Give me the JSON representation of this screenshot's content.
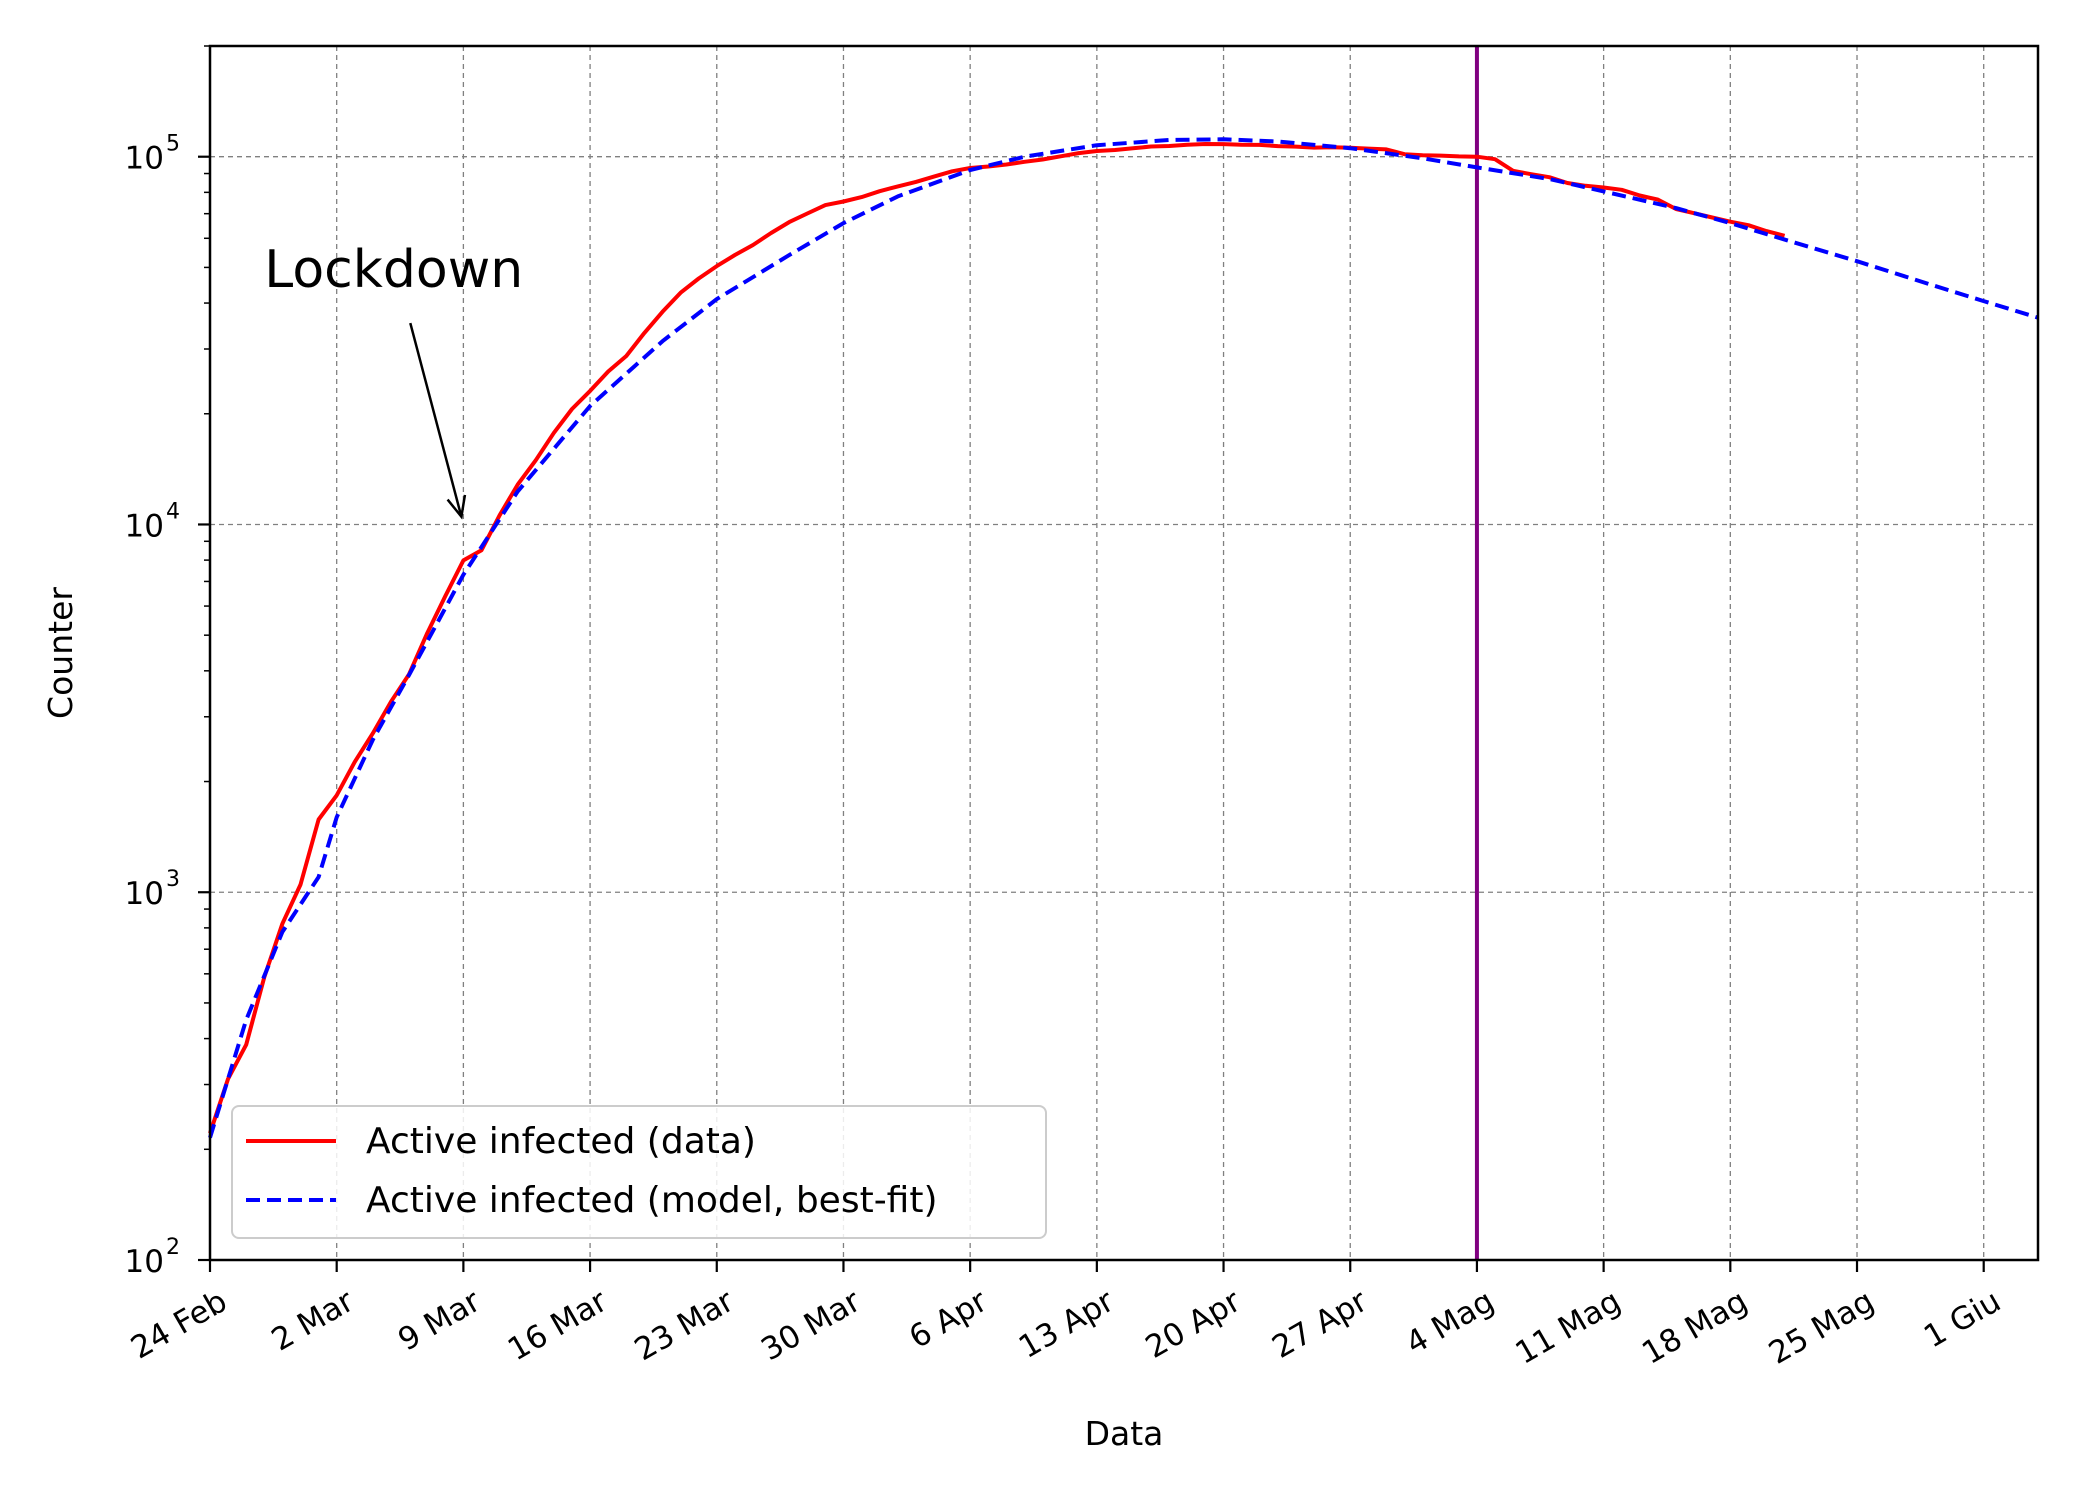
{
  "chart_data": {
    "type": "line",
    "scale_y": "log",
    "xlabel": "Data",
    "ylabel": "Counter",
    "ylim": [
      100,
      200000
    ],
    "xlim": [
      "2020-02-24",
      "2020-06-04"
    ],
    "grid": true,
    "legend_position": "lower-left",
    "x_ticks": [
      {
        "date": "2020-02-24",
        "label": "24 Feb"
      },
      {
        "date": "2020-03-02",
        "label": "2 Mar"
      },
      {
        "date": "2020-03-09",
        "label": "9 Mar"
      },
      {
        "date": "2020-03-16",
        "label": "16 Mar"
      },
      {
        "date": "2020-03-23",
        "label": "23 Mar"
      },
      {
        "date": "2020-03-30",
        "label": "30 Mar"
      },
      {
        "date": "2020-04-06",
        "label": "6 Apr"
      },
      {
        "date": "2020-04-13",
        "label": "13 Apr"
      },
      {
        "date": "2020-04-20",
        "label": "20 Apr"
      },
      {
        "date": "2020-04-27",
        "label": "27 Apr"
      },
      {
        "date": "2020-05-04",
        "label": "4 Mag"
      },
      {
        "date": "2020-05-11",
        "label": "11 Mag"
      },
      {
        "date": "2020-05-18",
        "label": "18 Mag"
      },
      {
        "date": "2020-05-25",
        "label": "25 Mag"
      },
      {
        "date": "2020-06-01",
        "label": "1 Giu"
      }
    ],
    "y_ticks": [
      {
        "value": 100,
        "base": "10",
        "exp": "2"
      },
      {
        "value": 1000,
        "base": "10",
        "exp": "3"
      },
      {
        "value": 10000,
        "base": "10",
        "exp": "4"
      },
      {
        "value": 100000,
        "base": "10",
        "exp": "5"
      }
    ],
    "vline": {
      "date": "2020-05-04",
      "color": "#800080"
    },
    "annotation": {
      "text": "Lockdown",
      "text_at": [
        "2020-02-27",
        40000
      ],
      "arrow_to": [
        "2020-03-09",
        10500
      ]
    },
    "series": [
      {
        "name": "Active infected (data)",
        "color": "#ff0000",
        "dash": "solid",
        "points": [
          [
            "2020-02-24",
            221
          ],
          [
            "2020-02-25",
            311
          ],
          [
            "2020-02-26",
            385
          ],
          [
            "2020-02-27",
            588
          ],
          [
            "2020-02-28",
            821
          ],
          [
            "2020-02-29",
            1049
          ],
          [
            "2020-03-01",
            1577
          ],
          [
            "2020-03-02",
            1835
          ],
          [
            "2020-03-03",
            2263
          ],
          [
            "2020-03-04",
            2706
          ],
          [
            "2020-03-05",
            3296
          ],
          [
            "2020-03-06",
            3916
          ],
          [
            "2020-03-07",
            5061
          ],
          [
            "2020-03-08",
            6387
          ],
          [
            "2020-03-09",
            7985
          ],
          [
            "2020-03-10",
            8514
          ],
          [
            "2020-03-11",
            10590
          ],
          [
            "2020-03-12",
            12839
          ],
          [
            "2020-03-13",
            14955
          ],
          [
            "2020-03-14",
            17750
          ],
          [
            "2020-03-15",
            20603
          ],
          [
            "2020-03-16",
            23073
          ],
          [
            "2020-03-17",
            26062
          ],
          [
            "2020-03-18",
            28710
          ],
          [
            "2020-03-19",
            33190
          ],
          [
            "2020-03-20",
            37860
          ],
          [
            "2020-03-21",
            42681
          ],
          [
            "2020-03-22",
            46638
          ],
          [
            "2020-03-23",
            50418
          ],
          [
            "2020-03-24",
            54030
          ],
          [
            "2020-03-25",
            57521
          ],
          [
            "2020-03-26",
            62013
          ],
          [
            "2020-03-27",
            66414
          ],
          [
            "2020-03-28",
            70065
          ],
          [
            "2020-03-29",
            73880
          ],
          [
            "2020-03-30",
            75528
          ],
          [
            "2020-03-31",
            77635
          ],
          [
            "2020-04-01",
            80572
          ],
          [
            "2020-04-02",
            83049
          ],
          [
            "2020-04-03",
            85388
          ],
          [
            "2020-04-04",
            88274
          ],
          [
            "2020-04-05",
            91246
          ],
          [
            "2020-04-06",
            93187
          ],
          [
            "2020-04-07",
            94067
          ],
          [
            "2020-04-08",
            95262
          ],
          [
            "2020-04-09",
            96877
          ],
          [
            "2020-04-10",
            98273
          ],
          [
            "2020-04-11",
            100269
          ],
          [
            "2020-04-12",
            102253
          ],
          [
            "2020-04-13",
            103616
          ],
          [
            "2020-04-14",
            104291
          ],
          [
            "2020-04-15",
            105418
          ],
          [
            "2020-04-16",
            106607
          ],
          [
            "2020-04-17",
            106962
          ],
          [
            "2020-04-18",
            107771
          ],
          [
            "2020-04-19",
            108257
          ],
          [
            "2020-04-20",
            108237
          ],
          [
            "2020-04-21",
            107709
          ],
          [
            "2020-04-22",
            107699
          ],
          [
            "2020-04-23",
            106848
          ],
          [
            "2020-04-24",
            106527
          ],
          [
            "2020-04-25",
            105847
          ],
          [
            "2020-04-26",
            106103
          ],
          [
            "2020-04-27",
            105813
          ],
          [
            "2020-04-28",
            105205
          ],
          [
            "2020-04-29",
            104657
          ],
          [
            "2020-04-30",
            101551
          ],
          [
            "2020-05-01",
            100943
          ],
          [
            "2020-05-02",
            100704
          ],
          [
            "2020-05-03",
            100179
          ],
          [
            "2020-05-04",
            99980
          ],
          [
            "2020-05-05",
            98467
          ],
          [
            "2020-05-06",
            91528
          ],
          [
            "2020-05-07",
            89624
          ],
          [
            "2020-05-08",
            87961
          ],
          [
            "2020-05-09",
            84842
          ],
          [
            "2020-05-10",
            83324
          ],
          [
            "2020-05-11",
            82488
          ],
          [
            "2020-05-12",
            81266
          ],
          [
            "2020-05-13",
            78457
          ],
          [
            "2020-05-14",
            76440
          ],
          [
            "2020-05-15",
            72070
          ],
          [
            "2020-05-16",
            70187
          ],
          [
            "2020-05-17",
            68351
          ],
          [
            "2020-05-18",
            66553
          ],
          [
            "2020-05-19",
            65129
          ],
          [
            "2020-05-20",
            62752
          ],
          [
            "2020-05-21",
            60960
          ]
        ]
      },
      {
        "name": "Active infected (model, best-fit)",
        "color": "#0000ff",
        "dash": "dashed",
        "points": [
          [
            "2020-02-24",
            215
          ],
          [
            "2020-02-26",
            450
          ],
          [
            "2020-02-28",
            780
          ],
          [
            "2020-03-01",
            1100
          ],
          [
            "2020-03-02",
            1600
          ],
          [
            "2020-03-04",
            2600
          ],
          [
            "2020-03-06",
            3900
          ],
          [
            "2020-03-09",
            7300
          ],
          [
            "2020-03-12",
            12300
          ],
          [
            "2020-03-16",
            21000
          ],
          [
            "2020-03-20",
            31500
          ],
          [
            "2020-03-23",
            41000
          ],
          [
            "2020-03-27",
            54000
          ],
          [
            "2020-03-30",
            66000
          ],
          [
            "2020-04-02",
            78000
          ],
          [
            "2020-04-06",
            92000
          ],
          [
            "2020-04-09",
            100000
          ],
          [
            "2020-04-13",
            107500
          ],
          [
            "2020-04-17",
            111000
          ],
          [
            "2020-04-20",
            111500
          ],
          [
            "2020-04-23",
            110000
          ],
          [
            "2020-04-27",
            105500
          ],
          [
            "2020-05-01",
            99000
          ],
          [
            "2020-05-04",
            93500
          ],
          [
            "2020-05-08",
            87000
          ],
          [
            "2020-05-11",
            80500
          ],
          [
            "2020-05-15",
            72500
          ],
          [
            "2020-05-18",
            66000
          ],
          [
            "2020-05-21",
            59500
          ],
          [
            "2020-05-25",
            52000
          ],
          [
            "2020-05-29",
            45000
          ],
          [
            "2020-06-01",
            40500
          ],
          [
            "2020-06-04",
            36500
          ]
        ]
      }
    ]
  }
}
